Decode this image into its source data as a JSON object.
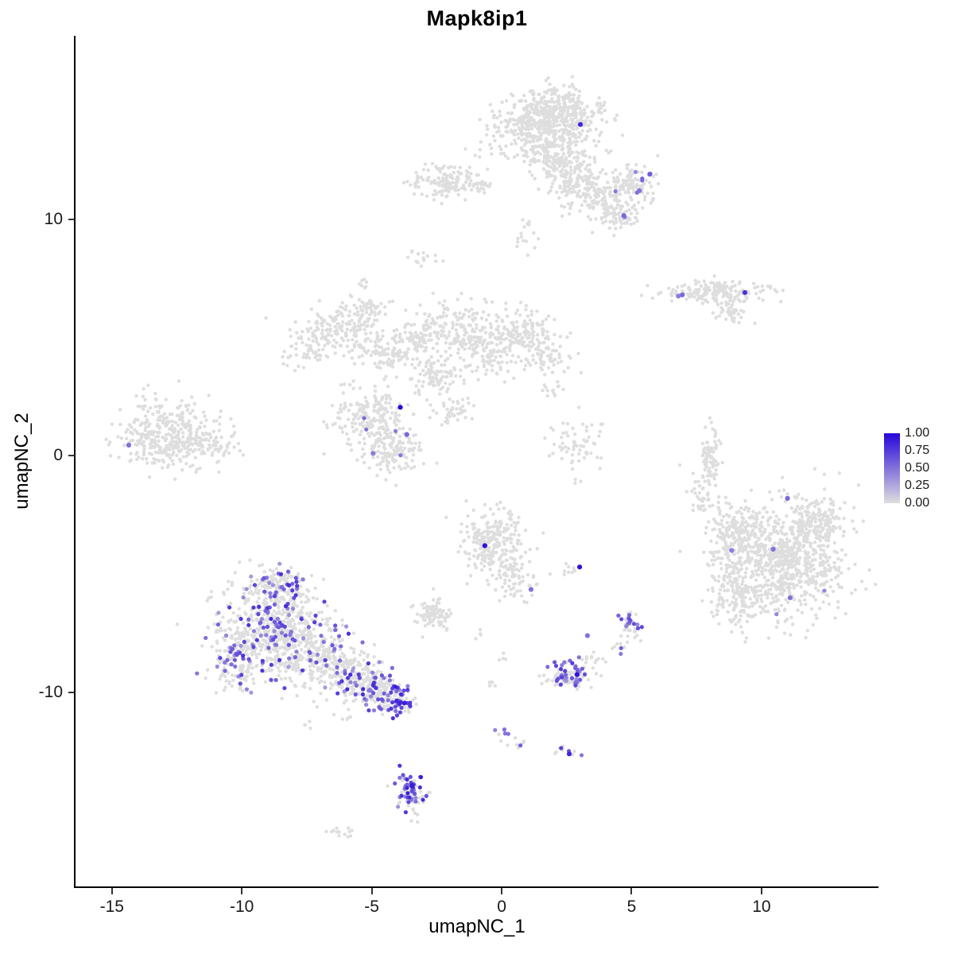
{
  "page": {
    "background": "#FFFFFF"
  },
  "chart_data": {
    "type": "scatter",
    "title": "Mapk8ip1",
    "xlabel": "umapNC_1",
    "ylabel": "umapNC_2",
    "xlim": [
      -16.4,
      14.5
    ],
    "ylim": [
      -18.2,
      17.75
    ],
    "x_ticks": [
      -15,
      -10,
      -5,
      0,
      5,
      10
    ],
    "y_ticks": [
      -10,
      0,
      10
    ],
    "grid": false,
    "theme": "classic",
    "point_color_low": "#DEDEDE",
    "point_color_high": "#2606D9",
    "legend": {
      "position": "right",
      "ticks": [
        "1.00",
        "0.75",
        "0.50",
        "0.25",
        "0.00"
      ],
      "values": [
        1,
        0.75,
        0.5,
        0.25,
        0
      ],
      "low_color": "#DEDEDE",
      "high_color": "#2606D9"
    },
    "clusters": [
      {
        "cx": 1.9,
        "cy": 14.5,
        "sx": 0.95,
        "sy": 0.5,
        "n": 420,
        "frac": 0,
        "lo": 0,
        "hi": 0
      },
      {
        "cx": 1.4,
        "cy": 13.4,
        "sx": 1.05,
        "sy": 0.5,
        "n": 260,
        "frac": 0,
        "lo": 0,
        "hi": 0
      },
      {
        "cx": 2.4,
        "cy": 12.4,
        "sx": 0.55,
        "sy": 0.55,
        "n": 150,
        "frac": 0,
        "lo": 0,
        "hi": 0
      },
      {
        "cx": 3.1,
        "cy": 11.4,
        "sx": 0.5,
        "sy": 0.45,
        "n": 110,
        "frac": 0,
        "lo": 0,
        "hi": 0
      },
      {
        "cx": 3.9,
        "cy": 10.7,
        "sx": 0.45,
        "sy": 0.4,
        "n": 80,
        "frac": 0,
        "lo": 0,
        "hi": 0
      },
      {
        "cx": 4.9,
        "cy": 11.4,
        "sx": 0.5,
        "sy": 0.45,
        "n": 120,
        "frac": 0.03,
        "lo": 0.4,
        "hi": 0.65
      },
      {
        "cx": 4.6,
        "cy": 10.05,
        "sx": 0.35,
        "sy": 0.3,
        "n": 50,
        "frac": 0.05,
        "lo": 0.4,
        "hi": 0.65
      },
      {
        "cx": -2.1,
        "cy": 11.6,
        "sx": 0.6,
        "sy": 0.38,
        "n": 120,
        "frac": 0,
        "lo": 0,
        "hi": 0
      },
      {
        "cx": -3.2,
        "cy": 11.5,
        "sx": 0.25,
        "sy": 0.18,
        "n": 16,
        "frac": 0,
        "lo": 0,
        "hi": 0
      },
      {
        "cx": -0.9,
        "cy": 11.4,
        "sx": 0.3,
        "sy": 0.2,
        "n": 22,
        "frac": 0,
        "lo": 0,
        "hi": 0
      },
      {
        "cx": 0.9,
        "cy": 9.3,
        "sx": 0.25,
        "sy": 0.45,
        "n": 16,
        "frac": 0,
        "lo": 0,
        "hi": 0
      },
      {
        "cx": -3.1,
        "cy": 8.4,
        "sx": 0.35,
        "sy": 0.14,
        "n": 14,
        "frac": 0,
        "lo": 0,
        "hi": 0
      },
      {
        "cx": -5.4,
        "cy": 7.3,
        "sx": 0.2,
        "sy": 0.12,
        "n": 7,
        "frac": 0,
        "lo": 0,
        "hi": 0
      },
      {
        "cx": -6.3,
        "cy": 5.2,
        "sx": 0.85,
        "sy": 0.5,
        "n": 180,
        "frac": 0,
        "lo": 0,
        "hi": 0
      },
      {
        "cx": -5.2,
        "cy": 6.2,
        "sx": 0.45,
        "sy": 0.3,
        "n": 55,
        "frac": 0,
        "lo": 0,
        "hi": 0
      },
      {
        "cx": -7.6,
        "cy": 4.4,
        "sx": 0.35,
        "sy": 0.3,
        "n": 40,
        "frac": 0,
        "lo": 0,
        "hi": 0
      },
      {
        "cx": -4.4,
        "cy": 4.3,
        "sx": 0.5,
        "sy": 0.4,
        "n": 85,
        "frac": 0,
        "lo": 0,
        "hi": 0
      },
      {
        "cx": -3.1,
        "cy": 4.9,
        "sx": 0.4,
        "sy": 0.4,
        "n": 70,
        "frac": 0,
        "lo": 0,
        "hi": 0
      },
      {
        "cx": -1.8,
        "cy": 5.5,
        "sx": 0.7,
        "sy": 0.5,
        "n": 130,
        "frac": 0,
        "lo": 0,
        "hi": 0
      },
      {
        "cx": -0.5,
        "cy": 4.6,
        "sx": 0.7,
        "sy": 0.6,
        "n": 150,
        "frac": 0,
        "lo": 0,
        "hi": 0
      },
      {
        "cx": 0.8,
        "cy": 5.3,
        "sx": 0.5,
        "sy": 0.5,
        "n": 110,
        "frac": 0,
        "lo": 0,
        "hi": 0
      },
      {
        "cx": 1.6,
        "cy": 4.3,
        "sx": 0.5,
        "sy": 0.45,
        "n": 80,
        "frac": 0,
        "lo": 0,
        "hi": 0
      },
      {
        "cx": -2.6,
        "cy": 3.4,
        "sx": 0.6,
        "sy": 0.45,
        "n": 100,
        "frac": 0,
        "lo": 0,
        "hi": 0
      },
      {
        "cx": -5.0,
        "cy": 1.5,
        "sx": 0.7,
        "sy": 0.65,
        "n": 210,
        "frac": 0.012,
        "lo": 0.4,
        "hi": 0.7
      },
      {
        "cx": -4.2,
        "cy": 0.2,
        "sx": 0.55,
        "sy": 0.45,
        "n": 120,
        "frac": 0.012,
        "lo": 0.4,
        "hi": 0.6
      },
      {
        "cx": -1.9,
        "cy": 1.8,
        "sx": 0.35,
        "sy": 0.35,
        "n": 40,
        "frac": 0,
        "lo": 0,
        "hi": 0
      },
      {
        "cx": 2.9,
        "cy": 0.6,
        "sx": 0.6,
        "sy": 0.7,
        "n": 65,
        "frac": 0,
        "lo": 0,
        "hi": 0
      },
      {
        "cx": 2.1,
        "cy": 2.7,
        "sx": 0.25,
        "sy": 0.2,
        "n": 12,
        "frac": 0,
        "lo": 0,
        "hi": 0
      },
      {
        "cx": -12.9,
        "cy": 0.9,
        "sx": 0.95,
        "sy": 0.7,
        "n": 360,
        "frac": 0,
        "lo": 0,
        "hi": 0
      },
      {
        "cx": -11.2,
        "cy": 0.5,
        "sx": 0.5,
        "sy": 0.35,
        "n": 60,
        "frac": 0,
        "lo": 0,
        "hi": 0
      },
      {
        "cx": 8.2,
        "cy": 6.9,
        "sx": 1.0,
        "sy": 0.22,
        "n": 170,
        "frac": 0,
        "lo": 0,
        "hi": 0
      },
      {
        "cx": 8.8,
        "cy": 6.0,
        "sx": 0.4,
        "sy": 0.25,
        "n": 40,
        "frac": 0,
        "lo": 0,
        "hi": 0
      },
      {
        "cx": 8.0,
        "cy": -0.2,
        "sx": 0.18,
        "sy": 0.75,
        "n": 80,
        "frac": 0,
        "lo": 0,
        "hi": 0
      },
      {
        "cx": 7.6,
        "cy": -1.6,
        "sx": 0.3,
        "sy": 0.4,
        "n": 30,
        "frac": 0,
        "lo": 0,
        "hi": 0
      },
      {
        "cx": 10.8,
        "cy": -4.3,
        "sx": 1.15,
        "sy": 1.2,
        "n": 850,
        "frac": 0.003,
        "lo": 0.35,
        "hi": 0.6
      },
      {
        "cx": 9.0,
        "cy": -3.3,
        "sx": 0.5,
        "sy": 0.6,
        "n": 150,
        "frac": 0,
        "lo": 0,
        "hi": 0
      },
      {
        "cx": 8.9,
        "cy": -5.8,
        "sx": 0.5,
        "sy": 0.8,
        "n": 150,
        "frac": 0,
        "lo": 0,
        "hi": 0
      },
      {
        "cx": 12.3,
        "cy": -2.7,
        "sx": 0.5,
        "sy": 0.5,
        "n": 120,
        "frac": 0,
        "lo": 0,
        "hi": 0
      },
      {
        "cx": -0.3,
        "cy": -3.6,
        "sx": 0.6,
        "sy": 0.75,
        "n": 240,
        "frac": 0,
        "lo": 0,
        "hi": 0
      },
      {
        "cx": 0.5,
        "cy": -5.1,
        "sx": 0.4,
        "sy": 0.5,
        "n": 70,
        "frac": 0,
        "lo": 0,
        "hi": 0
      },
      {
        "cx": -2.6,
        "cy": -6.7,
        "sx": 0.35,
        "sy": 0.3,
        "n": 90,
        "frac": 0,
        "lo": 0,
        "hi": 0
      },
      {
        "cx": 2.75,
        "cy": -4.75,
        "sx": 0.18,
        "sy": 0.12,
        "n": 8,
        "frac": 0,
        "lo": 0,
        "hi": 0
      },
      {
        "cx": 5.0,
        "cy": -7.1,
        "sx": 0.22,
        "sy": 0.3,
        "n": 40,
        "frac": 0.3,
        "lo": 0.35,
        "hi": 0.7
      },
      {
        "cx": 4.5,
        "cy": -8.1,
        "sx": 0.15,
        "sy": 0.12,
        "n": 8,
        "frac": 0.3,
        "lo": 0.4,
        "hi": 0.6
      },
      {
        "cx": 2.6,
        "cy": -9.3,
        "sx": 0.42,
        "sy": 0.3,
        "n": 110,
        "frac": 0.28,
        "lo": 0.3,
        "hi": 0.75
      },
      {
        "cx": 3.4,
        "cy": -8.5,
        "sx": 0.2,
        "sy": 0.15,
        "n": 14,
        "frac": 0.15,
        "lo": 0.4,
        "hi": 0.6
      },
      {
        "cx": -8.6,
        "cy": -5.5,
        "sx": 0.6,
        "sy": 0.45,
        "n": 150,
        "frac": 0.2,
        "lo": 0.3,
        "hi": 0.85
      },
      {
        "cx": -8.9,
        "cy": -7.3,
        "sx": 1.0,
        "sy": 0.95,
        "n": 500,
        "frac": 0.16,
        "lo": 0.3,
        "hi": 0.85
      },
      {
        "cx": -10.2,
        "cy": -8.6,
        "sx": 0.45,
        "sy": 0.6,
        "n": 130,
        "frac": 0.22,
        "lo": 0.3,
        "hi": 0.8
      },
      {
        "cx": -7.3,
        "cy": -8.4,
        "sx": 0.85,
        "sy": 0.75,
        "n": 280,
        "frac": 0.12,
        "lo": 0.3,
        "hi": 0.8
      },
      {
        "cx": -5.9,
        "cy": -9.3,
        "sx": 0.6,
        "sy": 0.5,
        "n": 160,
        "frac": 0.18,
        "lo": 0.3,
        "hi": 0.8
      },
      {
        "cx": -4.8,
        "cy": -9.9,
        "sx": 0.45,
        "sy": 0.38,
        "n": 130,
        "frac": 0.3,
        "lo": 0.35,
        "hi": 0.85
      },
      {
        "cx": -4.0,
        "cy": -10.4,
        "sx": 0.34,
        "sy": 0.28,
        "n": 90,
        "frac": 0.45,
        "lo": 0.4,
        "hi": 0.9
      },
      {
        "cx": -3.5,
        "cy": -14.2,
        "sx": 0.26,
        "sy": 0.45,
        "n": 90,
        "frac": 0.45,
        "lo": 0.35,
        "hi": 0.9
      },
      {
        "cx": -6.2,
        "cy": -15.9,
        "sx": 0.3,
        "sy": 0.12,
        "n": 14,
        "frac": 0,
        "lo": 0,
        "hi": 0
      },
      {
        "cx": 0.1,
        "cy": -11.7,
        "sx": 0.2,
        "sy": 0.15,
        "n": 8,
        "frac": 0.25,
        "lo": 0.4,
        "hi": 0.6
      },
      {
        "cx": 0.8,
        "cy": -12.2,
        "sx": 0.18,
        "sy": 0.12,
        "n": 6,
        "frac": 0.2,
        "lo": 0.4,
        "hi": 0.6
      },
      {
        "cx": 2.4,
        "cy": -12.5,
        "sx": 0.25,
        "sy": 0.18,
        "n": 12,
        "frac": 0.3,
        "lo": 0.4,
        "hi": 0.8
      },
      {
        "cx": -0.4,
        "cy": -9.6,
        "sx": 0.15,
        "sy": 0.12,
        "n": 5,
        "frac": 0,
        "lo": 0,
        "hi": 0
      },
      {
        "cx": 0.0,
        "cy": -8.6,
        "sx": 0.12,
        "sy": 0.1,
        "n": 4,
        "frac": 0,
        "lo": 0,
        "hi": 0
      },
      {
        "cx": -6.0,
        "cy": -11.1,
        "sx": 0.2,
        "sy": 0.12,
        "n": 5,
        "frac": 0,
        "lo": 0,
        "hi": 0
      },
      {
        "cx": -7.6,
        "cy": -11.4,
        "sx": 0.15,
        "sy": 0.1,
        "n": 4,
        "frac": 0,
        "lo": 0,
        "hi": 0
      },
      {
        "cx": -0.9,
        "cy": -7.6,
        "sx": 0.15,
        "sy": 0.1,
        "n": 4,
        "frac": 0,
        "lo": 0,
        "hi": 0
      }
    ],
    "highlight_points": [
      [
        3.03,
        14.0,
        0.85
      ],
      [
        5.7,
        11.9,
        0.6
      ],
      [
        5.3,
        11.2,
        0.5
      ],
      [
        4.7,
        10.15,
        0.55
      ],
      [
        6.95,
        6.8,
        0.55
      ],
      [
        6.8,
        6.75,
        0.45
      ],
      [
        9.36,
        6.9,
        0.8
      ],
      [
        -14.35,
        0.45,
        0.5
      ],
      [
        -3.9,
        2.05,
        1.0
      ],
      [
        -3.65,
        0.9,
        0.55
      ],
      [
        -4.95,
        0.1,
        0.45
      ],
      [
        -0.65,
        -3.8,
        0.95
      ],
      [
        1.13,
        -5.65,
        0.5
      ],
      [
        3.0,
        -4.7,
        0.95
      ],
      [
        11.0,
        -1.8,
        0.55
      ],
      [
        8.85,
        -4.0,
        0.45
      ],
      [
        10.45,
        -3.95,
        0.5
      ],
      [
        11.1,
        -6.0,
        0.5
      ],
      [
        2.9,
        -9.25,
        0.95
      ],
      [
        3.3,
        -7.6,
        0.5
      ],
      [
        2.6,
        -12.6,
        0.85
      ],
      [
        -3.45,
        -13.95,
        0.9
      ]
    ]
  }
}
